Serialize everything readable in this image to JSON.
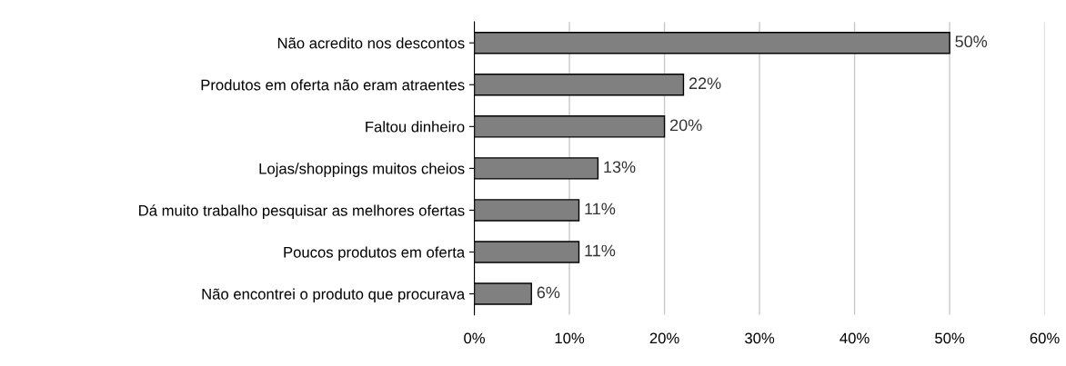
{
  "chart_data": {
    "type": "bar",
    "orientation": "horizontal",
    "categories": [
      "Não acredito nos descontos",
      "Produtos em oferta não eram atraentes",
      "Faltou dinheiro",
      "Lojas/shoppings muitos cheios",
      "Dá muito trabalho pesquisar as melhores ofertas",
      "Poucos produtos em oferta",
      "Não encontrei o produto que procurava"
    ],
    "values": [
      50,
      22,
      20,
      13,
      11,
      11,
      6
    ],
    "value_labels": [
      "50%",
      "22%",
      "20%",
      "13%",
      "11%",
      "11%",
      "6%"
    ],
    "color": "#808080",
    "xlim": [
      0,
      60
    ],
    "xticks": [
      {
        "value": 0,
        "label": "0%"
      },
      {
        "value": 10,
        "label": "10%"
      },
      {
        "value": 20,
        "label": "20%"
      },
      {
        "value": 30,
        "label": "30%"
      },
      {
        "value": 40,
        "label": "40%"
      },
      {
        "value": 50,
        "label": "50%"
      },
      {
        "value": 60,
        "label": "60%"
      }
    ],
    "grid": "x"
  }
}
